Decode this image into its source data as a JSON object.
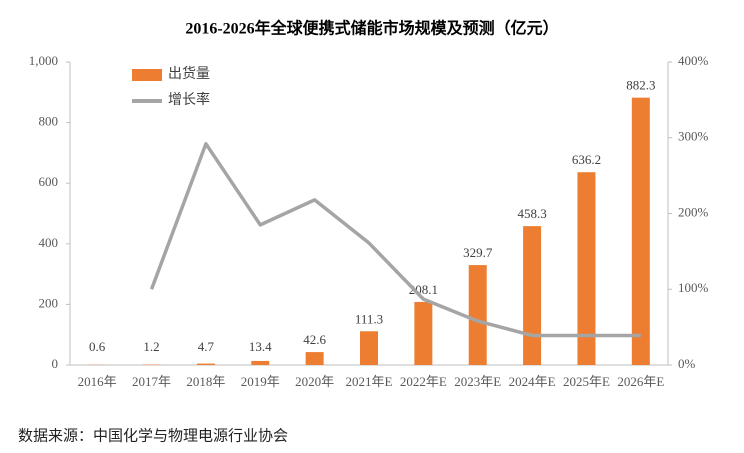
{
  "chart_data": {
    "type": "bar",
    "title": "2016-2026年全球便携式储能市场规模及预测（亿元）",
    "source": "数据来源：中国化学与物理电源行业协会",
    "categories": [
      "2016年",
      "2017年",
      "2018年",
      "2019年",
      "2020年",
      "2021年E",
      "2022年E",
      "2023年E",
      "2024年E",
      "2025年E",
      "2026年E"
    ],
    "series": [
      {
        "name": "出货量",
        "type": "bar",
        "color": "#ed7d31",
        "values": [
          0.6,
          1.2,
          4.7,
          13.4,
          42.6,
          111.3,
          208.1,
          329.7,
          458.3,
          636.2,
          882.3
        ]
      },
      {
        "name": "增长率",
        "type": "line",
        "axis": "y2",
        "color": "#a5a5a5",
        "values": [
          null,
          100,
          292,
          185,
          218,
          161,
          87,
          58,
          39,
          39,
          39
        ]
      }
    ],
    "ylim": [
      0,
      1000
    ],
    "yticks": [
      0,
      200,
      400,
      600,
      800,
      {
        "value": 1000,
        "label": "1,000"
      }
    ],
    "y2lim": [
      0,
      400
    ],
    "y2ticks": [
      {
        "value": 0,
        "label": "0%"
      },
      {
        "value": 100,
        "label": "100%"
      },
      {
        "value": 200,
        "label": "200%"
      },
      {
        "value": 300,
        "label": "300%"
      },
      {
        "value": 400,
        "label": "400%"
      }
    ],
    "legend": "top-left"
  }
}
